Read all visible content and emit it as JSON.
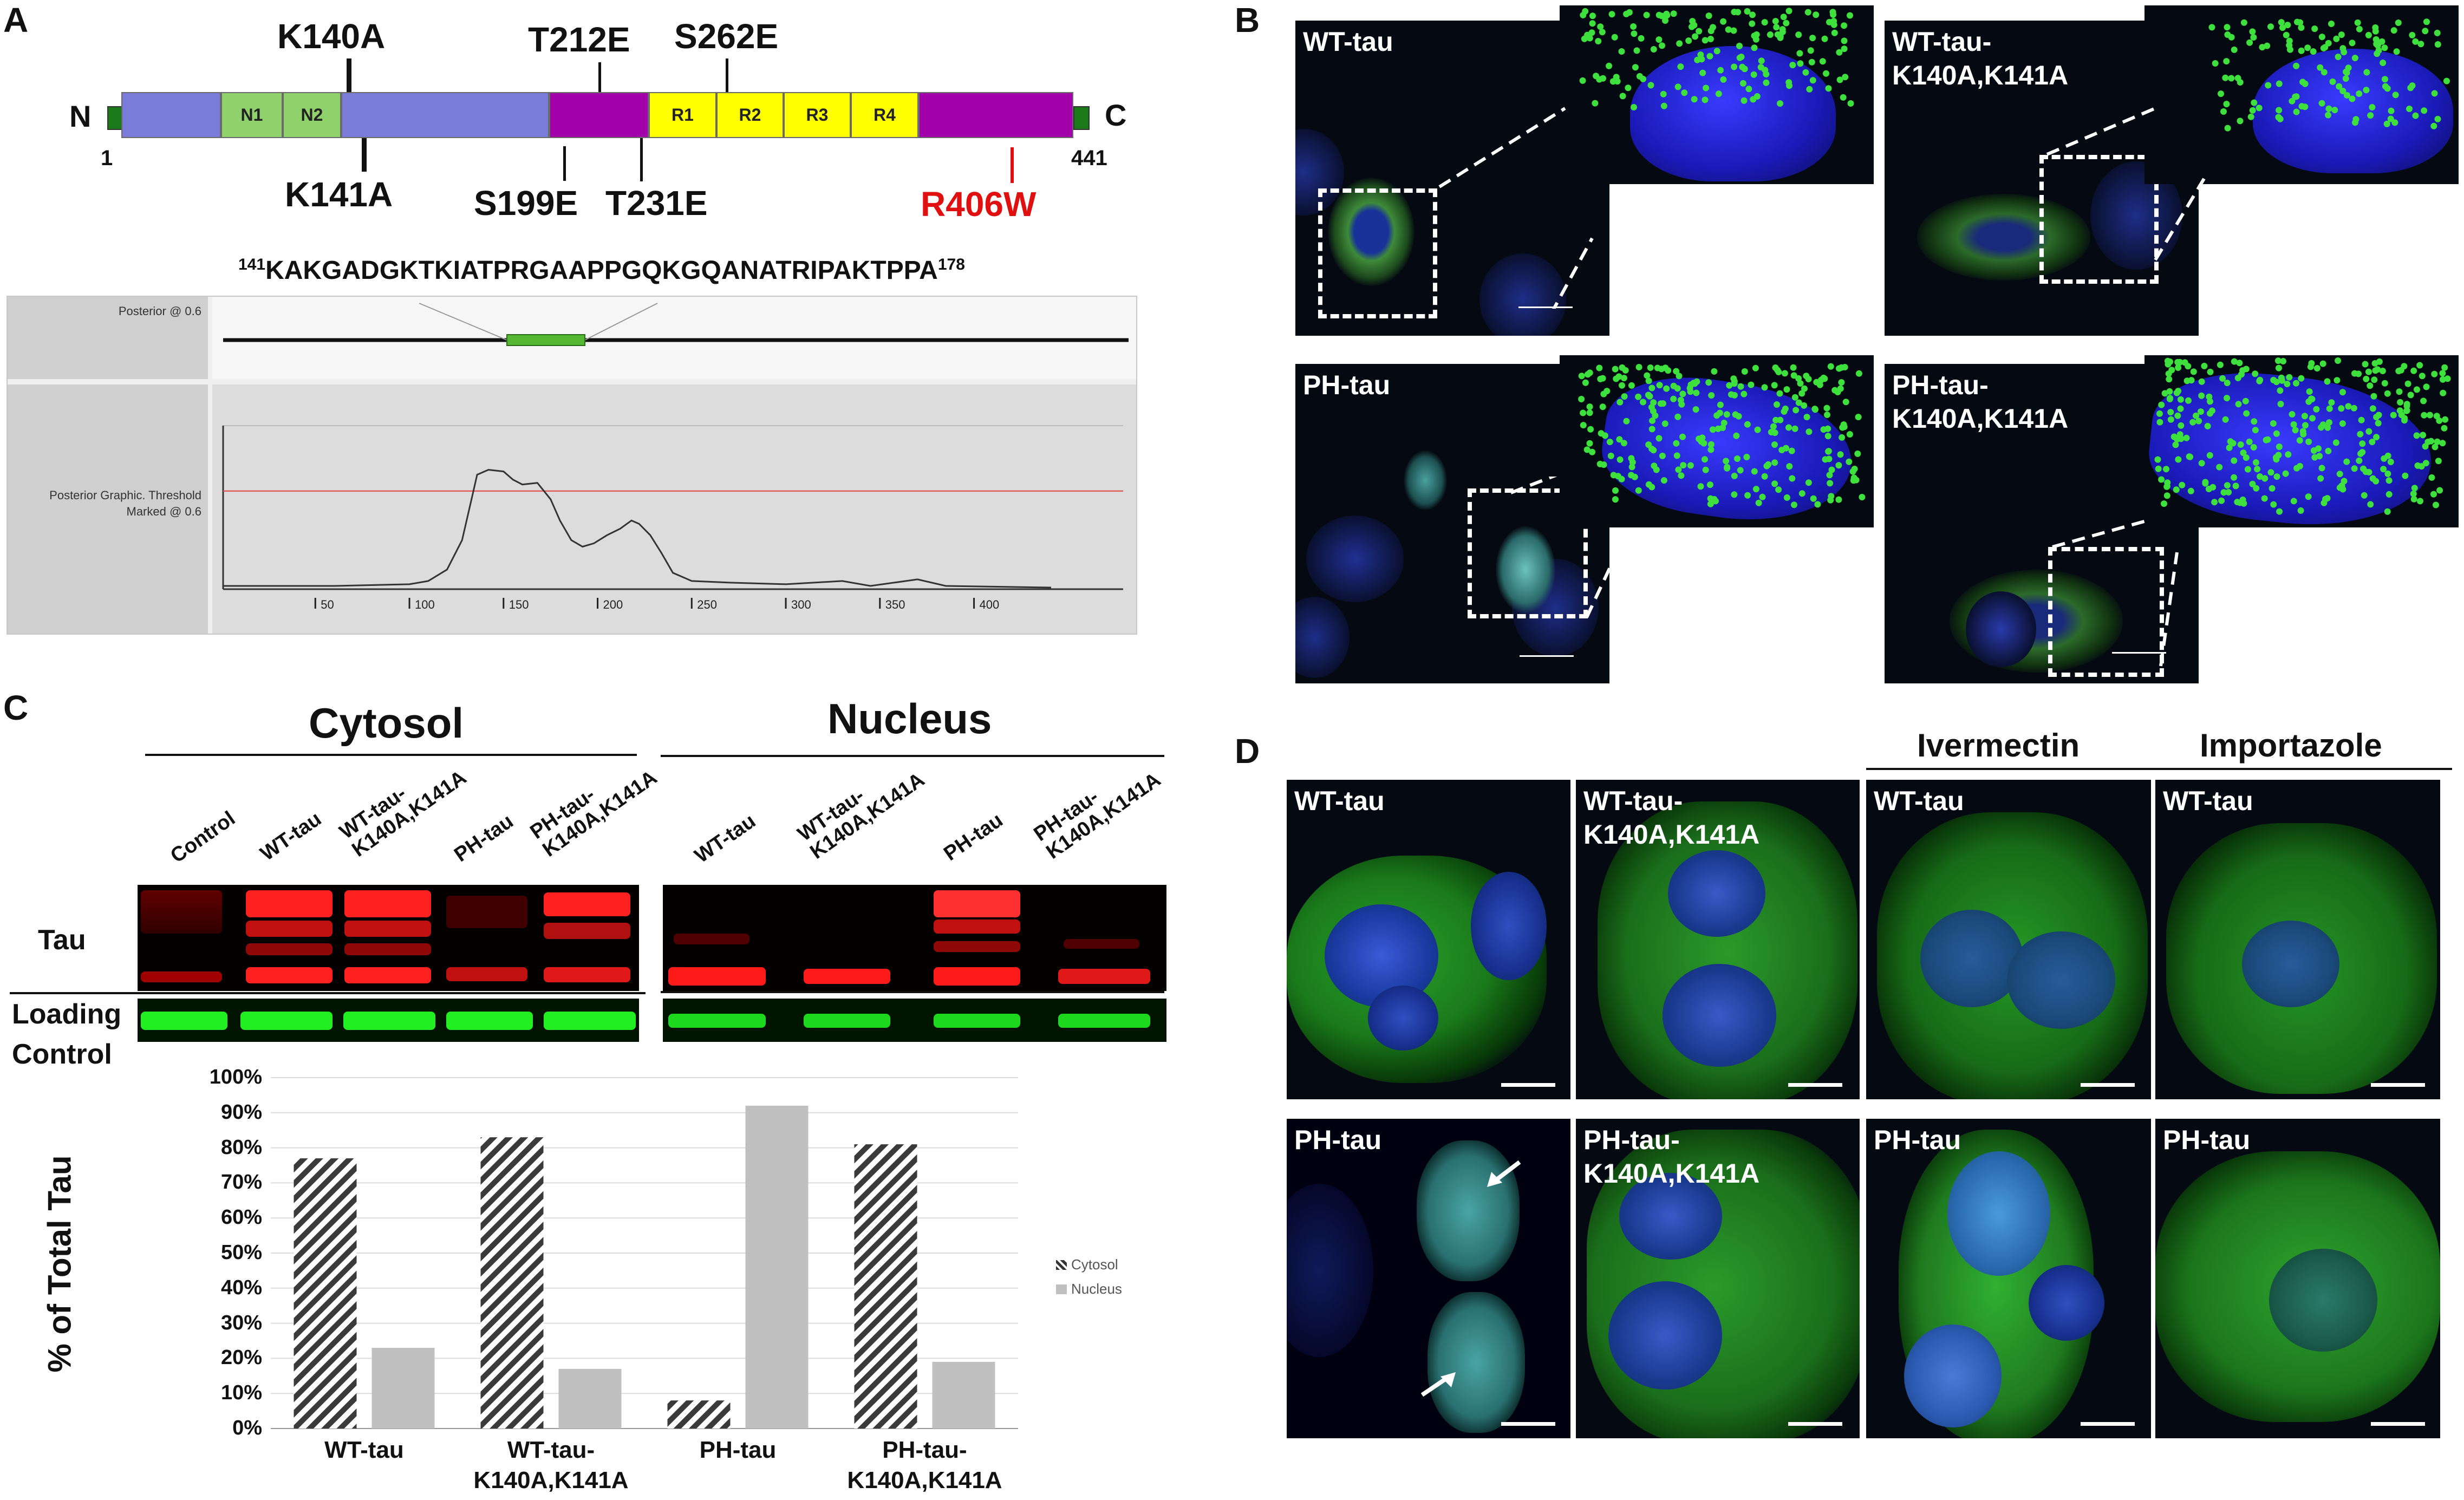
{
  "panels": {
    "a": "A",
    "b": "B",
    "c": "C",
    "d": "D"
  },
  "panel_a": {
    "n_term": "N",
    "c_term": "C",
    "start_index": "1",
    "end_index": "441",
    "domains": [
      {
        "label": "",
        "color": "#7b7bd9"
      },
      {
        "label": "N1",
        "color": "#8fd16a"
      },
      {
        "label": "N2",
        "color": "#8fd16a"
      },
      {
        "label": "",
        "color": "#7b7bd9"
      },
      {
        "label": "",
        "color": "#a200a8"
      },
      {
        "label": "R1",
        "color": "#ffff00"
      },
      {
        "label": "R2",
        "color": "#ffff00"
      },
      {
        "label": "R3",
        "color": "#ffff00"
      },
      {
        "label": "R4",
        "color": "#ffff00"
      },
      {
        "label": "",
        "color": "#a200a8"
      }
    ],
    "mutations_above": [
      "K140A",
      "T212E",
      "S262E"
    ],
    "mutations_below": [
      "K141A",
      "S199E",
      "T231E"
    ],
    "mutation_red": "R406W",
    "red_color": "#e01010",
    "sequence_start": "141",
    "sequence": "KAKGADGKTKIATPRGAAPPGQKGQANATRIPAKTPPA",
    "sequence_end": "178",
    "nls_panel": {
      "top_label": "Posterior @ 0.6",
      "bottom_label_1": "Posterior Graphic. Threshold",
      "bottom_label_2": "Marked @ 0.6",
      "highlight_color": "#55b833",
      "threshold_color": "#e34040",
      "x_ticks": [
        "50",
        "100",
        "150",
        "200",
        "250",
        "300",
        "350",
        "400"
      ],
      "threshold": 0.6,
      "profile": [
        [
          1,
          0.02
        ],
        [
          60,
          0.02
        ],
        [
          100,
          0.03
        ],
        [
          110,
          0.05
        ],
        [
          120,
          0.12
        ],
        [
          128,
          0.3
        ],
        [
          133,
          0.55
        ],
        [
          136,
          0.7
        ],
        [
          142,
          0.73
        ],
        [
          150,
          0.72
        ],
        [
          155,
          0.67
        ],
        [
          160,
          0.64
        ],
        [
          168,
          0.65
        ],
        [
          175,
          0.55
        ],
        [
          180,
          0.42
        ],
        [
          186,
          0.3
        ],
        [
          192,
          0.26
        ],
        [
          198,
          0.28
        ],
        [
          205,
          0.33
        ],
        [
          212,
          0.37
        ],
        [
          218,
          0.42
        ],
        [
          222,
          0.4
        ],
        [
          228,
          0.33
        ],
        [
          234,
          0.22
        ],
        [
          240,
          0.1
        ],
        [
          250,
          0.05
        ],
        [
          270,
          0.04
        ],
        [
          300,
          0.03
        ],
        [
          330,
          0.05
        ],
        [
          345,
          0.02
        ],
        [
          370,
          0.06
        ],
        [
          385,
          0.02
        ],
        [
          441,
          0.01
        ]
      ]
    }
  },
  "panel_b": {
    "images": [
      {
        "label": "WT-tau",
        "inset_color": "#2a2ad6"
      },
      {
        "label": "WT-tau-\nK140A,K141A",
        "inset_color": "#2a2ad6"
      },
      {
        "label": "PH-tau",
        "inset_color": "#2a2ad6"
      },
      {
        "label": "PH-tau-\nK140A,K141A",
        "inset_color": "#2a2ad6"
      }
    ],
    "dot_color": "#3ee03e"
  },
  "panel_c": {
    "cytosol_title": "Cytosol",
    "nucleus_title": "Nucleus",
    "cytosol_lanes": [
      "Control",
      "WT-tau",
      "WT-tau-\nK140A,K141A",
      "PH-tau",
      "PH-tau-\nK140A,K141A"
    ],
    "nucleus_lanes": [
      "WT-tau",
      "WT-tau-\nK140A,K141A",
      "PH-tau",
      "PH-tau-\nK140A,K141A"
    ],
    "row_tau": "Tau",
    "row_loading": "Loading\nControl",
    "tau_band_color": "#ff2020",
    "loading_band_color": "#22ee22"
  },
  "chart_data": {
    "type": "bar",
    "categories": [
      "WT-tau",
      "WT-tau-\nK140A,K141A",
      "PH-tau",
      "PH-tau-\nK140A,K141A"
    ],
    "series": [
      {
        "name": "Cytosol",
        "values": [
          77,
          83,
          8,
          81
        ],
        "pattern": "hatched"
      },
      {
        "name": "Nucleus",
        "values": [
          23,
          17,
          92,
          19
        ],
        "color": "#c0c0c0"
      }
    ],
    "ylabel": "% of Total Tau",
    "yticks": [
      "0%",
      "10%",
      "20%",
      "30%",
      "40%",
      "50%",
      "60%",
      "70%",
      "80%",
      "90%",
      "100%"
    ],
    "ylim": [
      0,
      100
    ],
    "grid": true,
    "legend": "right"
  },
  "panel_d": {
    "col_headers": [
      "Ivermectin",
      "Importazole"
    ],
    "labels_top": [
      "WT-tau",
      "WT-tau-\nK140A,K141A",
      "WT-tau",
      "WT-tau"
    ],
    "labels_bottom": [
      "PH-tau",
      "PH-tau-\nK140A,K141A",
      "PH-tau",
      "PH-tau"
    ]
  }
}
